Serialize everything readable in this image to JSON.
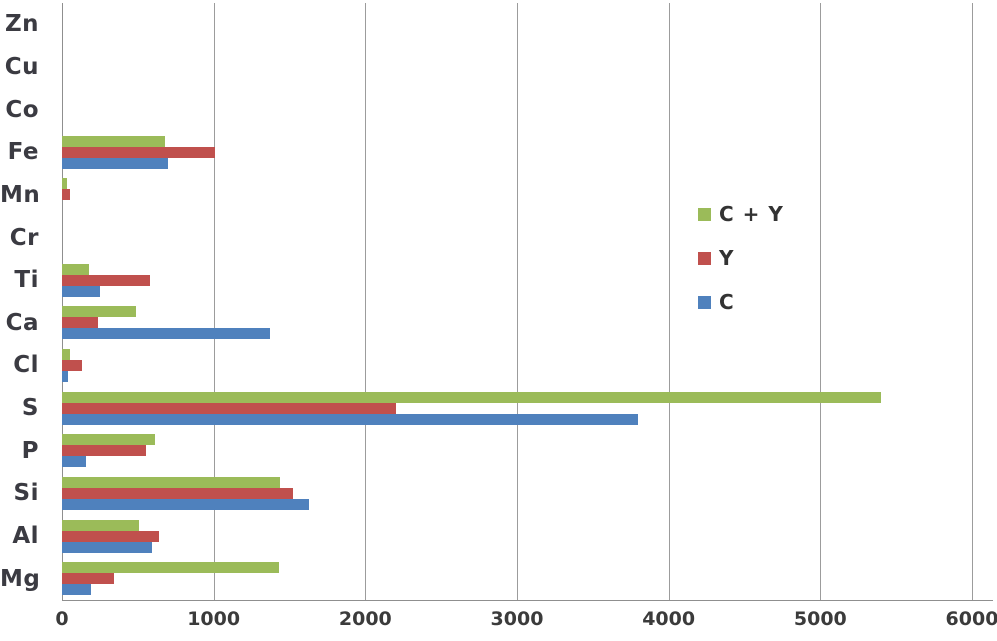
{
  "chart_data": {
    "type": "bar",
    "orientation": "horizontal",
    "title": "",
    "xlabel": "",
    "ylabel": "",
    "categories": [
      "Zn",
      "Cu",
      "Co",
      "Fe",
      "Mn",
      "Cr",
      "Ti",
      "Ca",
      "Cl",
      "S",
      "P",
      "Si",
      "Al",
      "Mg"
    ],
    "series": [
      {
        "name": "C + Y",
        "color": "#9BBB59",
        "values": [
          0,
          0,
          0,
          680,
          35,
          0,
          175,
          490,
          55,
          5400,
          610,
          1440,
          510,
          1430
        ]
      },
      {
        "name": "Y",
        "color": "#C0504D",
        "values": [
          0,
          0,
          0,
          1010,
          50,
          0,
          580,
          240,
          130,
          2200,
          555,
          1520,
          640,
          345
        ]
      },
      {
        "name": "C",
        "color": "#4F81BD",
        "values": [
          0,
          0,
          0,
          700,
          0,
          0,
          250,
          1370,
          40,
          3800,
          160,
          1630,
          595,
          190
        ]
      }
    ],
    "xlim": [
      0,
      6000
    ],
    "x_ticks": [
      0,
      1000,
      2000,
      3000,
      4000,
      5000,
      6000
    ],
    "grid": true,
    "legend_position": "middle-right",
    "bar_row_order_top_to_bottom": [
      "C + Y",
      "Y",
      "C"
    ]
  },
  "colors": {
    "background": "#ffffff",
    "gridline": "#9c9c9c",
    "axis_line": "#8f8f8f",
    "category_label_text": "#3b3b42",
    "tick_label_text": "#3b3b3b",
    "legend_text": "#333333"
  }
}
